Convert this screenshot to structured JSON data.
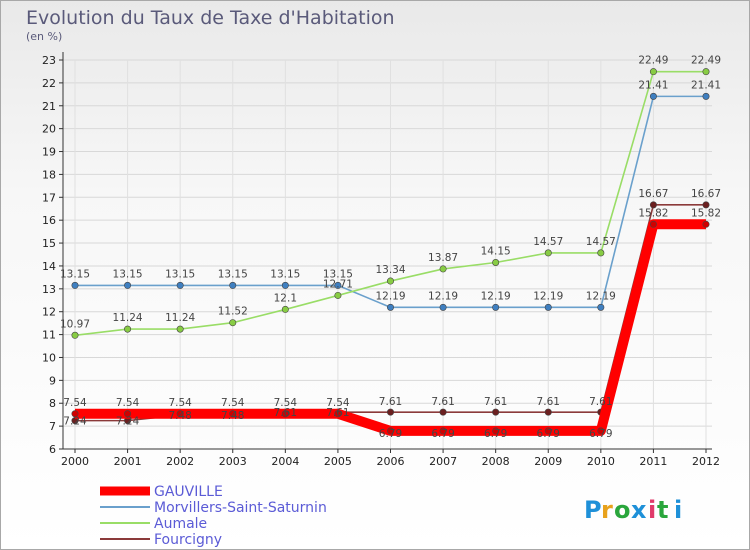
{
  "title": "Evolution du Taux de Taxe d'Habitation",
  "subtitle": "(en %)",
  "logo": {
    "text": "Proxiti",
    "letters": [
      "P",
      "r",
      "o",
      "x",
      "i",
      "t",
      "i"
    ],
    "colors": [
      "#1e90d8",
      "#e8a21c",
      "#2aa63c",
      "#1e90d8",
      "#e03b6a",
      "#2aa63c",
      "#1e90d8"
    ]
  },
  "chart_data": {
    "type": "line",
    "title": "Evolution du Taux de Taxe d'Habitation",
    "subtitle": "(en %)",
    "xlabel": "",
    "ylabel": "(en %)",
    "x": [
      "2000",
      "2001",
      "2002",
      "2003",
      "2004",
      "2005",
      "2006",
      "2007",
      "2008",
      "2009",
      "2010",
      "2011",
      "2012"
    ],
    "ylim": [
      6,
      23
    ],
    "yticks": [
      "6",
      "7",
      "8",
      "9",
      "10",
      "11",
      "12",
      "13",
      "14",
      "15",
      "16",
      "17",
      "18",
      "19",
      "20",
      "21",
      "22",
      "23"
    ],
    "grid": true,
    "legend_position": "bottom-left",
    "series": [
      {
        "name": "GAUVILLE",
        "color": "#ff0000",
        "values": [
          7.54,
          7.54,
          7.54,
          7.54,
          7.54,
          7.54,
          6.79,
          6.79,
          6.79,
          6.79,
          6.79,
          15.82,
          15.82
        ],
        "labels": [
          "7.54",
          "7.54",
          "7.54",
          "7.54",
          "7.54",
          "7.54",
          "6.79",
          "6.79",
          "6.79",
          "6.79",
          "6.79",
          "15.82",
          "15.82"
        ]
      },
      {
        "name": "Morvillers-Saint-Saturnin",
        "color": "#6aa0cc",
        "values": [
          13.15,
          13.15,
          13.15,
          13.15,
          13.15,
          13.15,
          12.19,
          12.19,
          12.19,
          12.19,
          12.19,
          21.41,
          21.41
        ],
        "labels": [
          "13.15",
          "13.15",
          "13.15",
          "13.15",
          "13.15",
          "13.15",
          "12.19",
          "12.19",
          "12.19",
          "12.19",
          "12.19",
          "21.41",
          "21.41"
        ]
      },
      {
        "name": "Aumale",
        "color": "#99dd66",
        "values": [
          10.97,
          11.24,
          11.24,
          11.52,
          12.1,
          12.71,
          13.34,
          13.87,
          14.15,
          14.57,
          14.57,
          22.49,
          22.49
        ],
        "labels": [
          "10.97",
          "11.24",
          "11.24",
          "11.52",
          "12.1",
          "12.71",
          "13.34",
          "13.87",
          "14.15",
          "14.57",
          "14.57",
          "22.49",
          "22.49"
        ]
      },
      {
        "name": "Fourcigny",
        "color": "#8b3a3a",
        "values": [
          7.24,
          7.24,
          7.48,
          7.48,
          7.61,
          7.61,
          7.61,
          7.61,
          7.61,
          7.61,
          7.61,
          16.67,
          16.67
        ],
        "labels": [
          "7.24",
          "7.24",
          "7.48",
          "7.48",
          "7.61",
          "7.61",
          "7.61",
          "7.61",
          "7.61",
          "7.61",
          "7.61",
          "16.67",
          "16.67"
        ]
      }
    ]
  }
}
